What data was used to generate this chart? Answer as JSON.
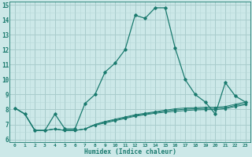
{
  "xlabel": "Humidex (Indice chaleur)",
  "bg_color": "#cce8e8",
  "grid_color_major": "#a8cccc",
  "grid_color_minor": "#b8d8d8",
  "line_color": "#1a7a6e",
  "xlim": [
    -0.5,
    23.5
  ],
  "ylim": [
    5.8,
    15.2
  ],
  "yticks": [
    6,
    7,
    8,
    9,
    10,
    11,
    12,
    13,
    14,
    15
  ],
  "xticks": [
    0,
    1,
    2,
    3,
    4,
    5,
    6,
    7,
    8,
    9,
    10,
    11,
    12,
    13,
    14,
    15,
    16,
    17,
    18,
    19,
    20,
    21,
    22,
    23
  ],
  "series_main": [
    8.1,
    7.7,
    6.6,
    6.6,
    7.7,
    6.7,
    6.7,
    8.4,
    9.0,
    10.5,
    11.1,
    12.0,
    14.3,
    14.1,
    14.8,
    14.8,
    12.1,
    10.0,
    9.0,
    8.5,
    7.7,
    9.8,
    8.9,
    8.5
  ],
  "series_flat": [
    [
      8.1,
      7.7,
      6.6,
      6.6,
      6.7,
      6.6,
      6.6,
      6.7,
      7.0,
      7.2,
      7.35,
      7.5,
      7.65,
      7.75,
      7.85,
      7.95,
      8.05,
      8.1,
      8.12,
      8.15,
      8.15,
      8.2,
      8.35,
      8.5
    ],
    [
      8.1,
      7.7,
      6.6,
      6.6,
      6.7,
      6.6,
      6.6,
      6.7,
      7.0,
      7.15,
      7.3,
      7.45,
      7.6,
      7.7,
      7.8,
      7.9,
      7.97,
      8.02,
      8.05,
      8.07,
      8.07,
      8.12,
      8.27,
      8.4
    ],
    [
      8.1,
      7.7,
      6.6,
      6.6,
      6.7,
      6.6,
      6.6,
      6.7,
      6.95,
      7.1,
      7.25,
      7.4,
      7.55,
      7.65,
      7.75,
      7.82,
      7.88,
      7.93,
      7.97,
      7.99,
      7.99,
      8.05,
      8.2,
      8.32
    ]
  ]
}
